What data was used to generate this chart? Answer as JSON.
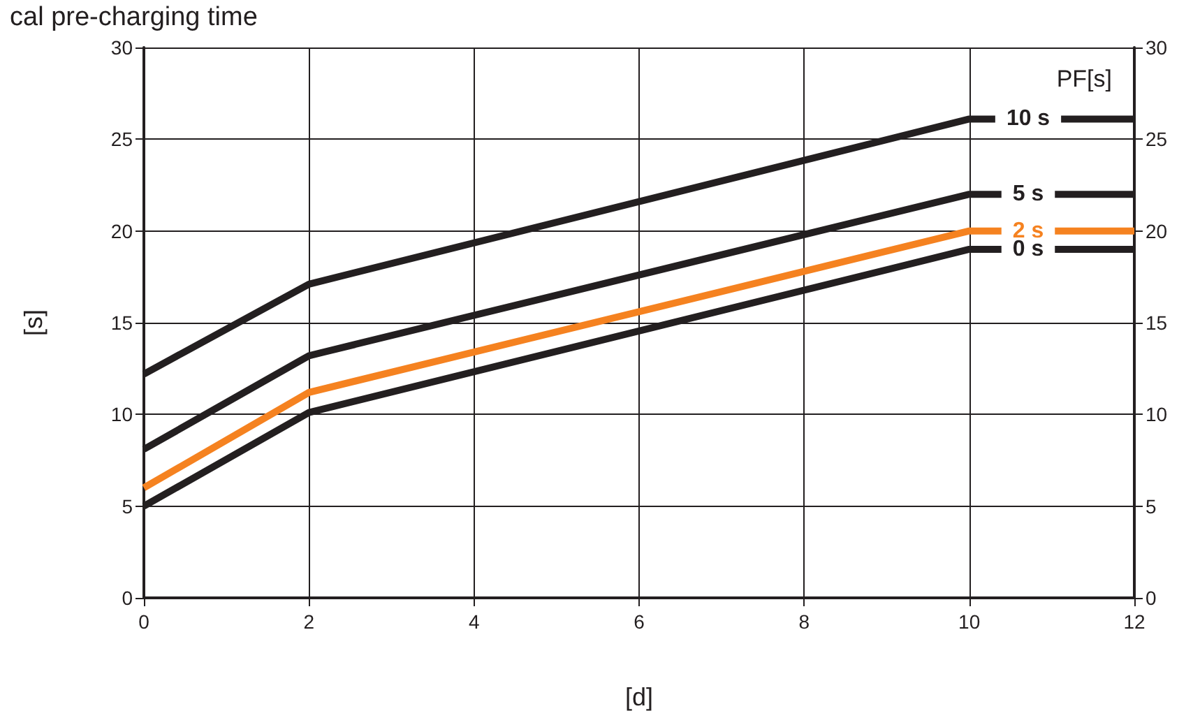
{
  "chart_data": {
    "type": "line",
    "title": "cal pre-charging time",
    "xlabel": "[d]",
    "ylabel": "[s]",
    "legend_title": "PF[s]",
    "x": [
      0,
      2,
      10,
      12
    ],
    "series": [
      {
        "name": "10 s",
        "color": "#231f20",
        "values": [
          12.2,
          17.1,
          26.1,
          26.1
        ]
      },
      {
        "name": "5 s",
        "color": "#231f20",
        "values": [
          8.1,
          13.2,
          22,
          22
        ]
      },
      {
        "name": "2 s",
        "color": "#f58220",
        "values": [
          6,
          11.2,
          20,
          20
        ]
      },
      {
        "name": "0 s",
        "color": "#231f20",
        "values": [
          5,
          10.1,
          19,
          19
        ]
      }
    ],
    "xlim": [
      0,
      12
    ],
    "xticks": [
      0,
      2,
      4,
      6,
      8,
      10,
      12
    ],
    "ylim": [
      0,
      30
    ],
    "yticks": [
      0,
      5,
      10,
      15,
      20,
      25,
      30
    ],
    "y2lim": [
      0,
      30
    ],
    "y2ticks": [
      0,
      5,
      10,
      15,
      20,
      25,
      30
    ],
    "grid": true,
    "marker": "none",
    "line_style": "solid"
  }
}
